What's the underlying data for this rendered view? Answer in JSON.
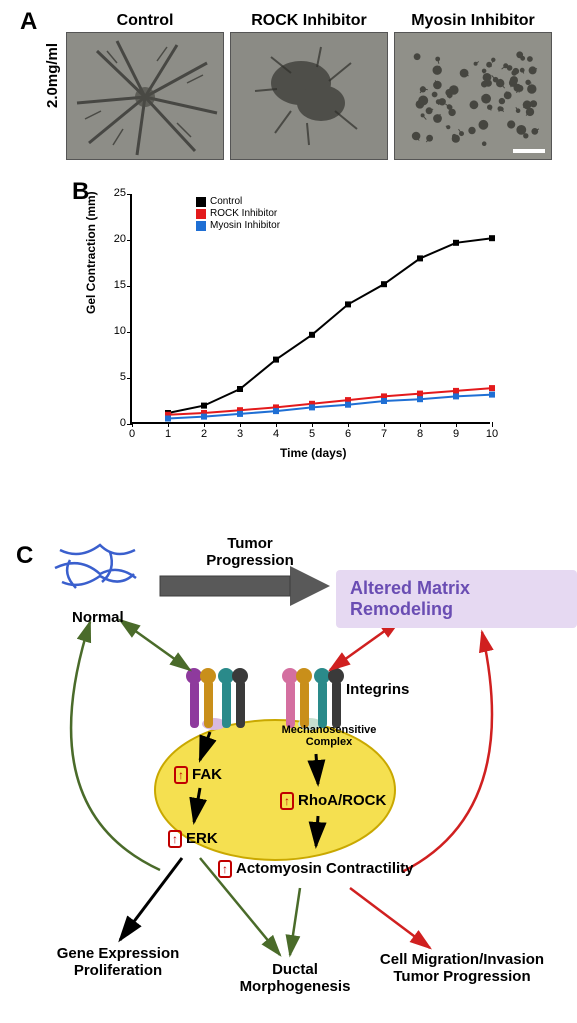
{
  "panelA": {
    "label": "A",
    "side_label": "2.0mg/ml",
    "titles": [
      "Control",
      "ROCK Inhibitor",
      "Myosin Inhibitor"
    ],
    "image_bg": "#8a8a86",
    "scale_bar_color": "#ffffff"
  },
  "panelB": {
    "label": "B",
    "ylabel": "Gel Contraction (mm)",
    "xlabel": "Time (days)",
    "xlim": [
      0,
      10
    ],
    "ylim": [
      0,
      25
    ],
    "xticks": [
      0,
      1,
      2,
      3,
      4,
      5,
      6,
      7,
      8,
      9,
      10
    ],
    "yticks": [
      0,
      5,
      10,
      15,
      20,
      25
    ],
    "axis_color": "#000000",
    "label_fontsize": 12,
    "tick_fontsize": 11,
    "legend_fontsize": 10,
    "background_color": "#ffffff",
    "series": [
      {
        "name": "Control",
        "color": "#000000",
        "marker": "square",
        "x": [
          1,
          2,
          3,
          4,
          5,
          6,
          7,
          8,
          9,
          10
        ],
        "y": [
          1.2,
          2.0,
          3.8,
          7.0,
          9.7,
          13.0,
          15.2,
          18.0,
          19.7,
          20.2
        ]
      },
      {
        "name": "ROCK Inhibitor",
        "color": "#e31a1c",
        "marker": "square",
        "x": [
          1,
          2,
          3,
          4,
          5,
          6,
          7,
          8,
          9,
          10
        ],
        "y": [
          1.0,
          1.2,
          1.5,
          1.8,
          2.2,
          2.6,
          3.0,
          3.3,
          3.6,
          3.9
        ]
      },
      {
        "name": "Myosin Inhibitor",
        "color": "#1f6fd4",
        "marker": "square",
        "x": [
          1,
          2,
          3,
          4,
          5,
          6,
          7,
          8,
          9,
          10
        ],
        "y": [
          0.6,
          0.8,
          1.1,
          1.4,
          1.8,
          2.1,
          2.5,
          2.7,
          3.0,
          3.2
        ]
      }
    ]
  },
  "panelC": {
    "label": "C",
    "tumor_progression": "Tumor\nProgression",
    "normal": "Normal",
    "altered": "Altered Matrix Remodeling",
    "integrins": "Integrins",
    "mech_complex": "Mechanosensitive\nComplex",
    "fak": "FAK",
    "erk": "ERK",
    "rho": "RhoA/ROCK",
    "acto": "Actomyosin Contractility",
    "gene_expr": "Gene Expression\nProliferation",
    "ductal": "Ductal\nMorphogenesis",
    "cell_mig": "Cell Migration/Invasion\nTumor Progression",
    "colors": {
      "tumor_arrow": "#595959",
      "green_arrow": "#4a6b2a",
      "red_arrow": "#d02020",
      "black_arrow": "#000000",
      "up_box": "#c00000",
      "remodel_bg": "#e6d9f2",
      "remodel_text": "#6a4db3",
      "fiber_blue": "#3a5fcd",
      "cell_yellow": "#f5e050",
      "cell_border": "#c9a800",
      "integrin_purple": "#8e3a9d",
      "integrin_teal": "#2a8a8a",
      "integrin_gold": "#c98f1a",
      "integrin_pink": "#d46fa0"
    }
  }
}
